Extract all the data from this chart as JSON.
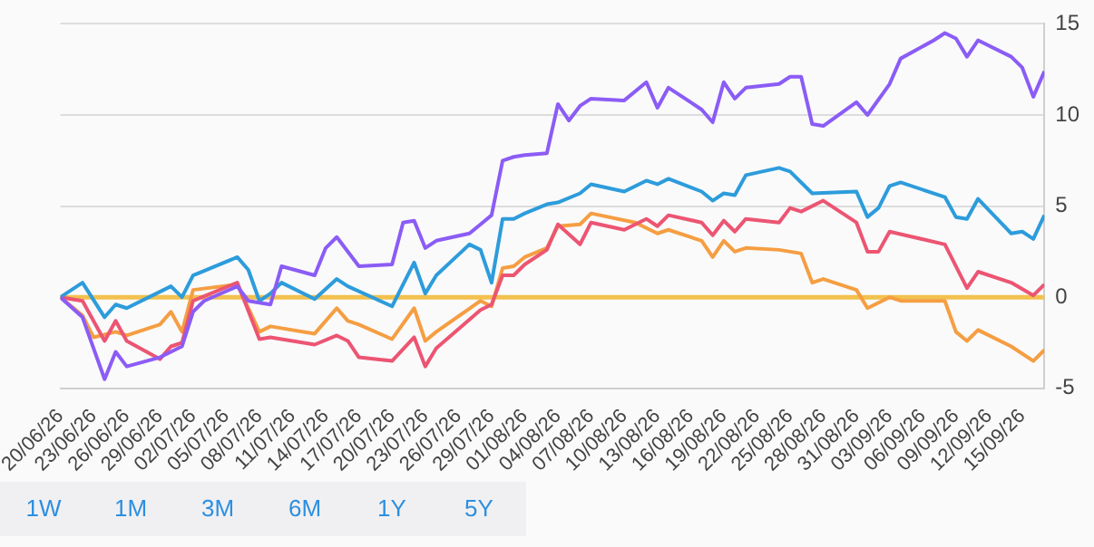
{
  "chart_data": {
    "type": "line",
    "xlim": [
      "--06-20",
      "--09-17"
    ],
    "xticks": [
      {
        "value": "--06-20",
        "label": "20/06/26"
      },
      {
        "value": "--06-23",
        "label": "23/06/26"
      },
      {
        "value": "--06-26",
        "label": "26/06/26"
      },
      {
        "value": "--06-29",
        "label": "29/06/26"
      },
      {
        "value": "--07-02",
        "label": "02/07/26"
      },
      {
        "value": "--07-05",
        "label": "05/07/26"
      },
      {
        "value": "--07-08",
        "label": "08/07/26"
      },
      {
        "value": "--07-11",
        "label": "11/07/26"
      },
      {
        "value": "--07-14",
        "label": "14/07/26"
      },
      {
        "value": "--07-17",
        "label": "17/07/26"
      },
      {
        "value": "--07-20",
        "label": "20/07/26"
      },
      {
        "value": "--07-23",
        "label": "23/07/26"
      },
      {
        "value": "--07-26",
        "label": "26/07/26"
      },
      {
        "value": "--07-29",
        "label": "29/07/26"
      },
      {
        "value": "--08-01",
        "label": "01/08/26"
      },
      {
        "value": "--08-04",
        "label": "04/08/26"
      },
      {
        "value": "--08-07",
        "label": "07/08/26"
      },
      {
        "value": "--08-10",
        "label": "10/08/26"
      },
      {
        "value": "--08-13",
        "label": "13/08/26"
      },
      {
        "value": "--08-16",
        "label": "16/08/26"
      },
      {
        "value": "--08-19",
        "label": "19/08/26"
      },
      {
        "value": "--08-22",
        "label": "22/08/26"
      },
      {
        "value": "--08-25",
        "label": "25/08/26"
      },
      {
        "value": "--08-28",
        "label": "28/08/26"
      },
      {
        "value": "--08-31",
        "label": "31/08/26"
      },
      {
        "value": "--09-03",
        "label": "03/09/26"
      },
      {
        "value": "--09-06",
        "label": "06/09/26"
      },
      {
        "value": "--09-09",
        "label": "09/09/26"
      },
      {
        "value": "--09-12",
        "label": "12/09/26"
      },
      {
        "value": "--09-15",
        "label": "15/09/26"
      }
    ],
    "ylim": [
      -5,
      15
    ],
    "yticks": [
      -5,
      0,
      5,
      10,
      15
    ],
    "grid": "y",
    "legend": false,
    "marker": "none",
    "ref_lines": [
      {
        "axis": "y",
        "value": 0,
        "color": "#f2c14e"
      }
    ],
    "annotations": [
      "1W",
      "1M",
      "3M",
      "6M",
      "1Y",
      "5Y"
    ],
    "series": [
      {
        "color": "#8b5cf6",
        "x": [
          "--06-20",
          "--06-22",
          "--06-24",
          "--06-25",
          "--06-26",
          "--06-29",
          "--07-01",
          "--07-02",
          "--07-03",
          "--07-06",
          "--07-07",
          "--07-09",
          "--07-10",
          "--07-13",
          "--07-14",
          "--07-15",
          "--07-17",
          "--07-20",
          "--07-21",
          "--07-22",
          "--07-23",
          "--07-24",
          "--07-27",
          "--07-28",
          "--07-29",
          "--07-30",
          "--07-31",
          "--08-01",
          "--08-03",
          "--08-04",
          "--08-05",
          "--08-06",
          "--08-07",
          "--08-10",
          "--08-12",
          "--08-13",
          "--08-14",
          "--08-17",
          "--08-18",
          "--08-19",
          "--08-20",
          "--08-21",
          "--08-24",
          "--08-25",
          "--08-26",
          "--08-27",
          "--08-28",
          "--08-31",
          "--09-01",
          "--09-03",
          "--09-04",
          "--09-07",
          "--09-08",
          "--09-09",
          "--09-10",
          "--09-11",
          "--09-14",
          "--09-15",
          "--09-16",
          "--09-17"
        ],
        "values": [
          0,
          -1.1,
          -4.5,
          -3,
          -3.8,
          -3.3,
          -2.7,
          -0.8,
          -0.2,
          0.6,
          -0.2,
          -0.4,
          1.7,
          1.2,
          2.7,
          3.3,
          1.7,
          1.8,
          4.1,
          4.2,
          2.7,
          3.1,
          3.5,
          4.0,
          4.5,
          7.5,
          7.7,
          7.8,
          7.9,
          10.6,
          9.7,
          10.5,
          10.9,
          10.8,
          11.8,
          10.4,
          11.5,
          10.3,
          9.6,
          11.8,
          10.9,
          11.5,
          11.7,
          12.1,
          12.1,
          9.5,
          9.4,
          10.7,
          10.0,
          11.7,
          13.1,
          14.1,
          14.5,
          14.2,
          13.2,
          14.1,
          13.2,
          12.6,
          11.0,
          12.4
        ]
      },
      {
        "color": "#2d9cdb",
        "x": [
          "--06-20",
          "--06-22",
          "--06-24",
          "--06-25",
          "--06-26",
          "--06-30",
          "--07-01",
          "--07-02",
          "--07-06",
          "--07-07",
          "--07-08",
          "--07-09",
          "--07-10",
          "--07-13",
          "--07-15",
          "--07-16",
          "--07-20",
          "--07-22",
          "--07-23",
          "--07-24",
          "--07-27",
          "--07-28",
          "--07-29",
          "--07-30",
          "--07-31",
          "--08-01",
          "--08-03",
          "--08-04",
          "--08-06",
          "--08-07",
          "--08-10",
          "--08-12",
          "--08-13",
          "--08-14",
          "--08-17",
          "--08-18",
          "--08-19",
          "--08-20",
          "--08-21",
          "--08-24",
          "--08-25",
          "--08-27",
          "--08-31",
          "--09-01",
          "--09-02",
          "--09-03",
          "--09-04",
          "--09-08",
          "--09-09",
          "--09-10",
          "--09-11",
          "--09-14",
          "--09-15",
          "--09-16",
          "--09-17"
        ],
        "values": [
          0,
          0.8,
          -1.1,
          -0.4,
          -0.6,
          0.6,
          0,
          1.2,
          2.2,
          1.5,
          -0.2,
          0.2,
          0.8,
          -0.1,
          1.0,
          0.6,
          -0.5,
          1.9,
          0.2,
          1.2,
          2.9,
          2.6,
          0.8,
          4.3,
          4.3,
          4.6,
          5.1,
          5.2,
          5.7,
          6.2,
          5.8,
          6.4,
          6.2,
          6.5,
          5.8,
          5.3,
          5.7,
          5.6,
          6.7,
          7.1,
          6.9,
          5.7,
          5.8,
          4.4,
          4.9,
          6.1,
          6.3,
          5.5,
          4.4,
          4.3,
          5.4,
          3.5,
          3.6,
          3.2,
          4.5
        ]
      },
      {
        "color": "#ec5572",
        "x": [
          "--06-20",
          "--06-22",
          "--06-24",
          "--06-25",
          "--06-26",
          "--06-29",
          "--06-30",
          "--07-01",
          "--07-02",
          "--07-06",
          "--07-08",
          "--07-09",
          "--07-13",
          "--07-15",
          "--07-16",
          "--07-17",
          "--07-20",
          "--07-22",
          "--07-23",
          "--07-24",
          "--07-28",
          "--07-29",
          "--07-30",
          "--07-31",
          "--08-01",
          "--08-03",
          "--08-04",
          "--08-06",
          "--08-07",
          "--08-10",
          "--08-12",
          "--08-13",
          "--08-14",
          "--08-17",
          "--08-18",
          "--08-19",
          "--08-20",
          "--08-21",
          "--08-24",
          "--08-25",
          "--08-26",
          "--08-28",
          "--08-31",
          "--09-01",
          "--09-02",
          "--09-03",
          "--09-08",
          "--09-10",
          "--09-11",
          "--09-14",
          "--09-16",
          "--09-17"
        ],
        "values": [
          0,
          -0.2,
          -2.4,
          -1.3,
          -2.4,
          -3.4,
          -2.7,
          -2.5,
          -0.2,
          0.8,
          -2.3,
          -2.2,
          -2.6,
          -2.1,
          -2.4,
          -3.3,
          -3.5,
          -2.2,
          -3.8,
          -2.8,
          -0.7,
          -0.4,
          1.2,
          1.2,
          1.8,
          2.6,
          4.0,
          2.9,
          4.1,
          3.7,
          4.3,
          3.9,
          4.5,
          4.1,
          3.4,
          4.2,
          3.6,
          4.3,
          4.1,
          4.9,
          4.7,
          5.3,
          4.1,
          2.5,
          2.5,
          3.6,
          2.9,
          0.5,
          1.4,
          0.8,
          0.1,
          0.7
        ]
      },
      {
        "color": "#f59e42",
        "x": [
          "--06-20",
          "--06-22",
          "--06-23",
          "--06-25",
          "--06-26",
          "--06-29",
          "--06-30",
          "--07-01",
          "--07-02",
          "--07-06",
          "--07-08",
          "--07-09",
          "--07-13",
          "--07-15",
          "--07-16",
          "--07-17",
          "--07-20",
          "--07-22",
          "--07-23",
          "--07-24",
          "--07-28",
          "--07-29",
          "--07-30",
          "--07-31",
          "--08-01",
          "--08-03",
          "--08-04",
          "--08-06",
          "--08-07",
          "--08-11",
          "--08-13",
          "--08-14",
          "--08-17",
          "--08-18",
          "--08-19",
          "--08-20",
          "--08-21",
          "--08-24",
          "--08-26",
          "--08-27",
          "--08-28",
          "--08-31",
          "--09-01",
          "--09-03",
          "--09-04",
          "--09-08",
          "--09-09",
          "--09-10",
          "--09-11",
          "--09-14",
          "--09-16",
          "--09-17"
        ],
        "values": [
          0,
          -1.0,
          -2.2,
          -1.9,
          -2.1,
          -1.5,
          -0.8,
          -1.9,
          0.4,
          0.7,
          -1.9,
          -1.6,
          -2.0,
          -0.6,
          -1.3,
          -1.5,
          -2.3,
          -0.6,
          -2.4,
          -1.9,
          -0.2,
          -0.5,
          1.6,
          1.7,
          2.2,
          2.7,
          3.9,
          4.0,
          4.6,
          4.1,
          3.5,
          3.7,
          3.1,
          2.2,
          3.1,
          2.5,
          2.7,
          2.6,
          2.4,
          0.8,
          1.0,
          0.4,
          -0.6,
          0.0,
          -0.2,
          -0.2,
          -1.9,
          -2.4,
          -1.8,
          -2.7,
          -3.5,
          -2.9
        ]
      }
    ]
  }
}
